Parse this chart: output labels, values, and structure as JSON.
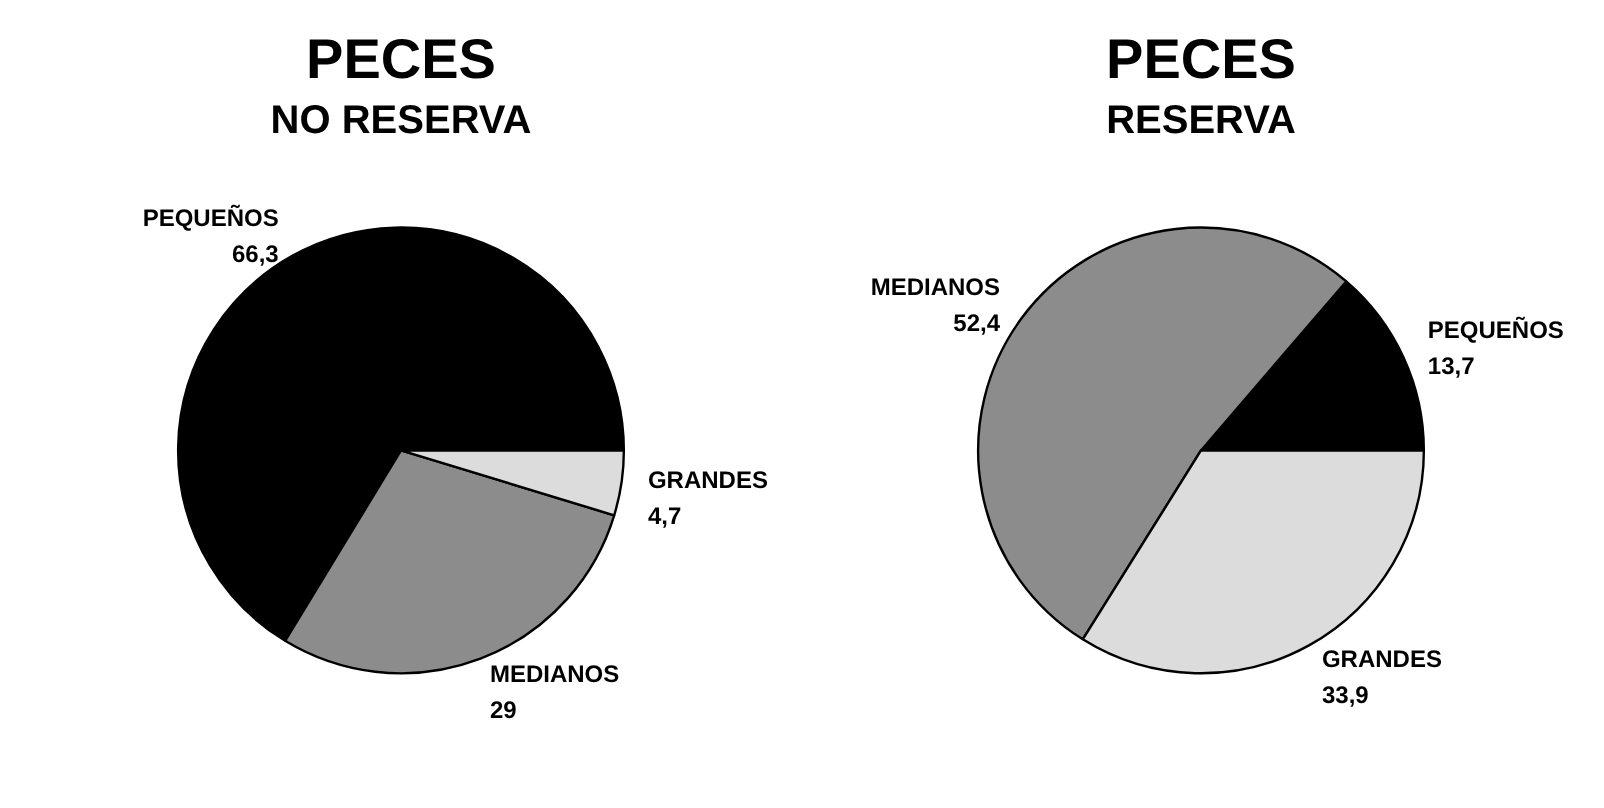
{
  "chart_data": [
    {
      "type": "pie",
      "title": "PECES",
      "subtitle": "NO RESERVA",
      "categories": [
        "PEQUEÑOS",
        "MEDIANOS",
        "GRANDES"
      ],
      "values": [
        66.3,
        29,
        4.7
      ],
      "colors": [
        "#000000",
        "#8c8c8c",
        "#dcdcdc"
      ],
      "value_labels": [
        "66,3",
        "29",
        "4,7"
      ]
    },
    {
      "type": "pie",
      "title": "PECES",
      "subtitle": "RESERVA",
      "categories": [
        "PEQUEÑOS",
        "MEDIANOS",
        "GRANDES"
      ],
      "values": [
        13.7,
        52.4,
        33.9
      ],
      "colors": [
        "#000000",
        "#8c8c8c",
        "#dcdcdc"
      ],
      "value_labels": [
        "13,7",
        "52,4",
        "33,9"
      ]
    }
  ]
}
